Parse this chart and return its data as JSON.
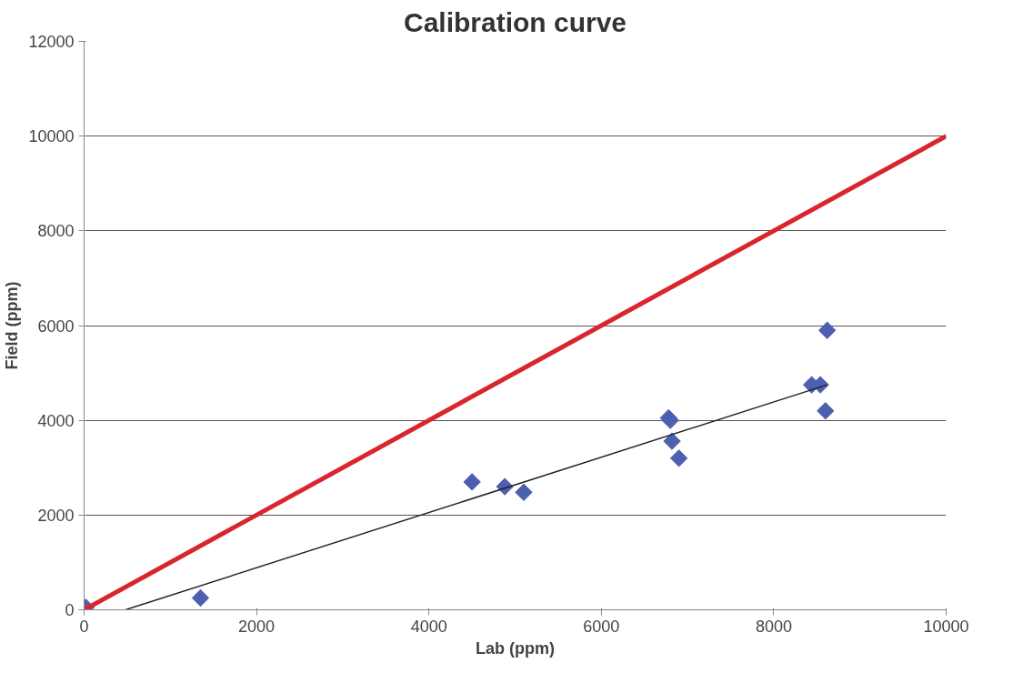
{
  "chart_data": {
    "type": "scatter",
    "title": "Calibration curve",
    "xlabel": "Lab (ppm)",
    "ylabel": "Field (ppm)",
    "xlim": [
      0,
      10000
    ],
    "xticks": [
      0,
      2000,
      4000,
      6000,
      8000,
      10000
    ],
    "ylim": [
      0,
      12000
    ],
    "yticks": [
      0,
      2000,
      4000,
      6000,
      8000,
      10000,
      12000
    ],
    "grid": "y",
    "series": [
      {
        "marker": "diamond",
        "color": "#4f5fb0",
        "x": [
          20,
          1350,
          4500,
          4880,
          5100,
          6780,
          6800,
          6820,
          6900,
          8440,
          8540,
          8620,
          8600
        ],
        "values": [
          50,
          250,
          2700,
          2600,
          2480,
          4050,
          4000,
          3560,
          3200,
          4750,
          4750,
          5900,
          4200
        ]
      },
      {
        "type": "line",
        "color": "#d9252e",
        "x": [
          0,
          10000
        ],
        "values": [
          0,
          10000
        ]
      },
      {
        "type": "line",
        "color": "#222222",
        "x": [
          480,
          8620
        ],
        "values": [
          0,
          4750
        ]
      }
    ]
  }
}
